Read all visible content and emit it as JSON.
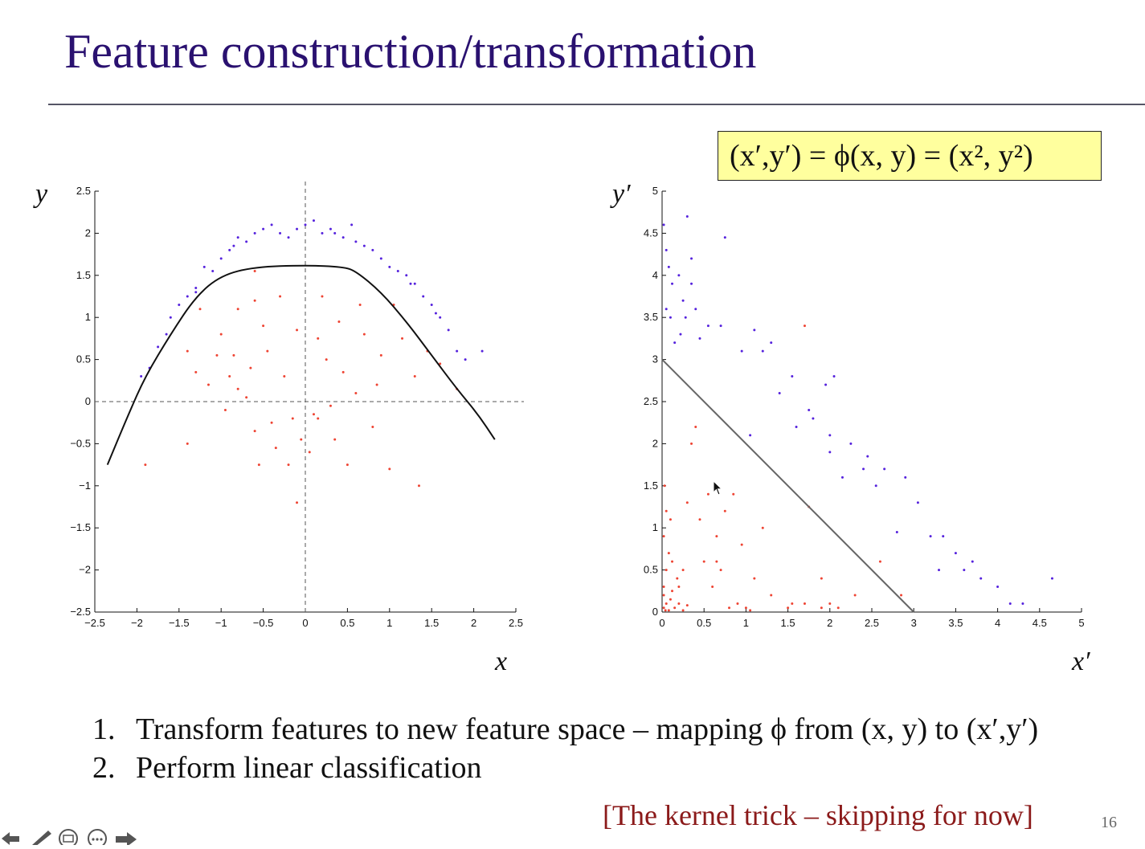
{
  "slide": {
    "title": "Feature construction/transformation",
    "formula": "(x′,y′) = ϕ(x, y) = (x², y²)",
    "list": [
      {
        "num": "1.",
        "text": "Transform features to new feature space – mapping ϕ from (x, y) to (x′,y′)"
      },
      {
        "num": "2.",
        "text": "Perform linear classification"
      }
    ],
    "note": "[The kernel trick – skipping for now]",
    "page_number": "16",
    "colors": {
      "title": "#2a1170",
      "class_a": "#5522dd",
      "class_b": "#ee4433",
      "note": "#8b1a1a",
      "formula_bg": "#ffff9e"
    },
    "toolbar_icons": [
      "back-arrow-icon",
      "pen-icon",
      "slides-icon",
      "more-icon",
      "forward-arrow-icon"
    ]
  },
  "chart_data": [
    {
      "type": "scatter",
      "xlabel": "x",
      "ylabel": "y",
      "xlim": [
        -2.5,
        2.5
      ],
      "ylim": [
        -2.5,
        2.5
      ],
      "xticks": [
        "−2.5",
        "−2",
        "−1.5",
        "−1",
        "−0.5",
        "0",
        "0.5",
        "1",
        "1.5",
        "2",
        "2.5"
      ],
      "yticks": [
        "−2.5",
        "−2",
        "−1.5",
        "−1",
        "−0.5",
        "0",
        "0.5",
        "1",
        "1.5",
        "2",
        "2.5"
      ],
      "xtick_values": [
        -2.5,
        -2,
        -1.5,
        -1,
        -0.5,
        0,
        0.5,
        1,
        1.5,
        2,
        2.5
      ],
      "ytick_values": [
        -2.5,
        -2,
        -1.5,
        -1,
        -0.5,
        0,
        0.5,
        1,
        1.5,
        2,
        2.5
      ],
      "series": [
        {
          "color": "#5522dd",
          "points": [
            [
              -1.95,
              0.3
            ],
            [
              -1.85,
              0.4
            ],
            [
              -1.75,
              0.65
            ],
            [
              -1.65,
              0.8
            ],
            [
              -1.6,
              1.0
            ],
            [
              -1.5,
              1.15
            ],
            [
              -1.4,
              1.25
            ],
            [
              -1.3,
              1.35
            ],
            [
              -1.2,
              1.6
            ],
            [
              -1.1,
              1.55
            ],
            [
              -1.0,
              1.7
            ],
            [
              -0.9,
              1.8
            ],
            [
              -0.8,
              1.95
            ],
            [
              -0.7,
              1.9
            ],
            [
              -0.6,
              2.0
            ],
            [
              -0.5,
              2.05
            ],
            [
              -0.4,
              2.1
            ],
            [
              -0.3,
              2.0
            ],
            [
              -0.2,
              1.95
            ],
            [
              -0.1,
              2.05
            ],
            [
              0.0,
              2.1
            ],
            [
              0.2,
              2.0
            ],
            [
              0.3,
              2.05
            ],
            [
              0.45,
              1.95
            ],
            [
              0.55,
              2.1
            ],
            [
              0.6,
              1.9
            ],
            [
              0.7,
              1.85
            ],
            [
              0.8,
              1.8
            ],
            [
              0.9,
              1.7
            ],
            [
              1.0,
              1.6
            ],
            [
              1.1,
              1.55
            ],
            [
              1.2,
              1.5
            ],
            [
              1.3,
              1.4
            ],
            [
              1.4,
              1.25
            ],
            [
              1.5,
              1.15
            ],
            [
              1.6,
              1.0
            ],
            [
              1.7,
              0.85
            ],
            [
              1.8,
              0.6
            ],
            [
              1.9,
              0.5
            ],
            [
              2.1,
              0.6
            ],
            [
              -1.3,
              1.3
            ],
            [
              -0.85,
              1.85
            ],
            [
              0.1,
              2.15
            ],
            [
              0.35,
              2.0
            ],
            [
              1.25,
              1.4
            ],
            [
              1.55,
              1.05
            ]
          ]
        },
        {
          "color": "#ee4433",
          "points": [
            [
              -1.9,
              -0.75
            ],
            [
              -1.4,
              -0.5
            ],
            [
              -1.4,
              0.6
            ],
            [
              -1.3,
              0.35
            ],
            [
              -1.25,
              1.1
            ],
            [
              -1.15,
              0.2
            ],
            [
              -1.05,
              0.55
            ],
            [
              -0.95,
              -0.1
            ],
            [
              -0.9,
              0.3
            ],
            [
              -0.85,
              0.55
            ],
            [
              -0.8,
              0.15
            ],
            [
              -0.8,
              1.1
            ],
            [
              -0.7,
              0.05
            ],
            [
              -0.65,
              0.4
            ],
            [
              -0.6,
              -0.35
            ],
            [
              -0.6,
              1.55
            ],
            [
              -0.55,
              -0.75
            ],
            [
              -0.5,
              0.9
            ],
            [
              -0.45,
              0.6
            ],
            [
              -0.4,
              -0.25
            ],
            [
              -0.35,
              -0.55
            ],
            [
              -0.3,
              1.25
            ],
            [
              -0.25,
              0.3
            ],
            [
              -0.2,
              -0.75
            ],
            [
              -0.15,
              -0.2
            ],
            [
              -0.1,
              0.85
            ],
            [
              -0.05,
              -0.45
            ],
            [
              0.05,
              -0.6
            ],
            [
              0.1,
              -0.15
            ],
            [
              0.15,
              0.75
            ],
            [
              0.2,
              1.25
            ],
            [
              0.25,
              0.5
            ],
            [
              0.3,
              -0.05
            ],
            [
              0.35,
              -0.45
            ],
            [
              0.4,
              0.95
            ],
            [
              0.45,
              0.35
            ],
            [
              0.5,
              -0.75
            ],
            [
              0.6,
              0.1
            ],
            [
              0.7,
              0.8
            ],
            [
              0.8,
              -0.3
            ],
            [
              0.85,
              0.2
            ],
            [
              0.9,
              0.55
            ],
            [
              1.0,
              -0.8
            ],
            [
              1.05,
              1.15
            ],
            [
              1.15,
              0.75
            ],
            [
              1.3,
              0.3
            ],
            [
              1.35,
              -1.0
            ],
            [
              1.45,
              0.6
            ],
            [
              1.6,
              0.45
            ],
            [
              1.8,
              0.15
            ],
            [
              -0.6,
              1.2
            ],
            [
              0.15,
              -0.2
            ],
            [
              -1.0,
              0.8
            ],
            [
              0.65,
              1.15
            ],
            [
              -0.1,
              -1.2
            ]
          ]
        }
      ],
      "boundary_curve": [
        [
          -2.35,
          -0.75
        ],
        [
          -2.1,
          -0.15
        ],
        [
          -1.9,
          0.3
        ],
        [
          -1.6,
          0.8
        ],
        [
          -1.3,
          1.25
        ],
        [
          -1.0,
          1.5
        ],
        [
          -0.6,
          1.6
        ],
        [
          0.0,
          1.62
        ],
        [
          0.45,
          1.6
        ],
        [
          0.6,
          1.55
        ],
        [
          0.9,
          1.3
        ],
        [
          1.2,
          0.95
        ],
        [
          1.5,
          0.55
        ],
        [
          1.8,
          0.15
        ],
        [
          2.05,
          -0.15
        ],
        [
          2.25,
          -0.45
        ]
      ]
    },
    {
      "type": "scatter",
      "xlabel": "x′",
      "ylabel": "y′",
      "xlim": [
        0,
        5
      ],
      "ylim": [
        0,
        5
      ],
      "xticks": [
        "0",
        "0.5",
        "1",
        "1.5",
        "2",
        "2.5",
        "3",
        "3.5",
        "4",
        "4.5",
        "5"
      ],
      "yticks": [
        "0",
        "0.5",
        "1",
        "1.5",
        "2",
        "2.5",
        "3",
        "3.5",
        "4",
        "4.5",
        "5"
      ],
      "xtick_values": [
        0,
        0.5,
        1,
        1.5,
        2,
        2.5,
        3,
        3.5,
        4,
        4.5,
        5
      ],
      "ytick_values": [
        0,
        0.5,
        1,
        1.5,
        2,
        2.5,
        3,
        3.5,
        4,
        4.5,
        5
      ],
      "series": [
        {
          "color": "#5522dd",
          "points": [
            [
              0.02,
              4.6
            ],
            [
              0.05,
              4.3
            ],
            [
              0.08,
              4.1
            ],
            [
              0.12,
              3.9
            ],
            [
              0.2,
              4.0
            ],
            [
              0.25,
              3.7
            ],
            [
              0.3,
              4.7
            ],
            [
              0.35,
              4.2
            ],
            [
              0.05,
              3.6
            ],
            [
              0.1,
              3.5
            ],
            [
              0.15,
              3.2
            ],
            [
              0.22,
              3.3
            ],
            [
              0.28,
              3.5
            ],
            [
              0.35,
              3.9
            ],
            [
              0.4,
              3.6
            ],
            [
              0.55,
              3.4
            ],
            [
              0.7,
              3.4
            ],
            [
              0.75,
              4.45
            ],
            [
              0.95,
              3.1
            ],
            [
              1.1,
              3.35
            ],
            [
              1.2,
              3.1
            ],
            [
              1.3,
              3.2
            ],
            [
              1.4,
              2.6
            ],
            [
              1.55,
              2.8
            ],
            [
              1.6,
              2.2
            ],
            [
              1.75,
              2.4
            ],
            [
              1.8,
              2.3
            ],
            [
              1.95,
              2.7
            ],
            [
              2.05,
              2.8
            ],
            [
              2.0,
              2.1
            ],
            [
              2.0,
              1.9
            ],
            [
              2.15,
              1.6
            ],
            [
              2.25,
              2.0
            ],
            [
              2.4,
              1.7
            ],
            [
              2.55,
              1.5
            ],
            [
              2.65,
              1.7
            ],
            [
              2.9,
              1.6
            ],
            [
              3.05,
              1.3
            ],
            [
              2.8,
              0.95
            ],
            [
              3.2,
              0.9
            ],
            [
              3.35,
              0.9
            ],
            [
              3.5,
              0.7
            ],
            [
              3.6,
              0.5
            ],
            [
              3.7,
              0.6
            ],
            [
              3.8,
              0.4
            ],
            [
              4.0,
              0.3
            ],
            [
              4.15,
              0.1
            ],
            [
              4.3,
              0.1
            ],
            [
              4.65,
              0.4
            ],
            [
              0.45,
              3.25
            ],
            [
              1.05,
              2.1
            ],
            [
              2.45,
              1.85
            ],
            [
              3.3,
              0.5
            ]
          ]
        },
        {
          "color": "#ee4433",
          "points": [
            [
              0.02,
              0.05
            ],
            [
              0.05,
              0.1
            ],
            [
              0.08,
              0.02
            ],
            [
              0.1,
              0.15
            ],
            [
              0.15,
              0.05
            ],
            [
              0.2,
              0.1
            ],
            [
              0.25,
              0.02
            ],
            [
              0.3,
              0.08
            ],
            [
              0.02,
              0.3
            ],
            [
              0.05,
              0.5
            ],
            [
              0.08,
              0.7
            ],
            [
              0.12,
              0.6
            ],
            [
              0.18,
              0.4
            ],
            [
              0.02,
              0.9
            ],
            [
              0.05,
              1.2
            ],
            [
              0.03,
              1.5
            ],
            [
              0.1,
              1.1
            ],
            [
              0.25,
              0.5
            ],
            [
              0.3,
              1.3
            ],
            [
              0.35,
              2.0
            ],
            [
              0.4,
              2.2
            ],
            [
              0.45,
              1.1
            ],
            [
              0.5,
              0.6
            ],
            [
              0.55,
              1.4
            ],
            [
              0.6,
              0.3
            ],
            [
              0.65,
              0.9
            ],
            [
              0.7,
              0.5
            ],
            [
              0.75,
              1.2
            ],
            [
              0.8,
              0.05
            ],
            [
              0.85,
              1.4
            ],
            [
              0.9,
              0.1
            ],
            [
              1.0,
              0.05
            ],
            [
              1.05,
              0.02
            ],
            [
              1.1,
              0.4
            ],
            [
              1.2,
              1.0
            ],
            [
              1.3,
              0.2
            ],
            [
              1.5,
              0.05
            ],
            [
              1.7,
              0.1
            ],
            [
              1.9,
              0.05
            ],
            [
              2.1,
              0.05
            ],
            [
              2.3,
              0.2
            ],
            [
              2.6,
              0.6
            ],
            [
              2.85,
              0.2
            ],
            [
              1.9,
              0.4
            ],
            [
              1.75,
              1.25
            ],
            [
              1.7,
              3.4
            ],
            [
              0.02,
              0.2
            ],
            [
              0.04,
              0.02
            ],
            [
              0.12,
              0.25
            ],
            [
              0.2,
              0.3
            ],
            [
              0.65,
              0.6
            ],
            [
              0.95,
              0.8
            ],
            [
              1.55,
              0.1
            ],
            [
              2.0,
              0.1
            ]
          ]
        }
      ],
      "boundary_line": [
        [
          0,
          3
        ],
        [
          3,
          0
        ]
      ]
    }
  ]
}
